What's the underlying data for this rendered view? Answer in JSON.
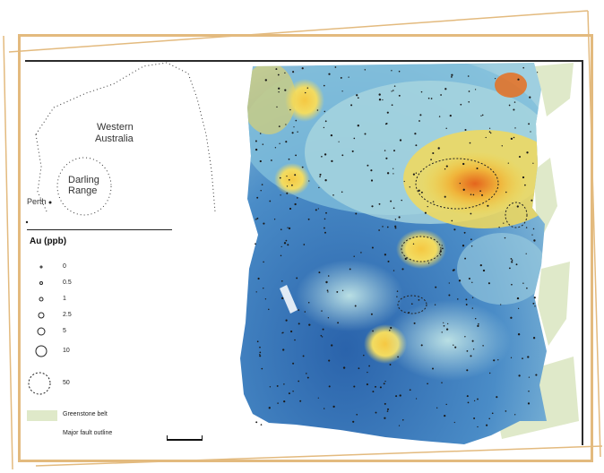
{
  "inset": {
    "region_label_1": "Western",
    "region_label_2": "Australia",
    "area_label_1": "Darling",
    "area_label_2": "Range",
    "city_label": "Perth"
  },
  "legend": {
    "title": "Au (ppb)",
    "items": [
      {
        "label": "0"
      },
      {
        "label": "0.5"
      },
      {
        "label": "1"
      },
      {
        "label": "2.5"
      },
      {
        "label": "5"
      },
      {
        "label": "10"
      },
      {
        "label": "50"
      }
    ],
    "swatch_label": "Greenstone belt",
    "outline_label": "Major fault outline"
  },
  "colors": {
    "frame": "#e3ba7e",
    "low": "#2f6cb0",
    "mid": "#8cc7dd",
    "neutral": "#d7eadd",
    "high": "#f1d64c",
    "peak": "#e86f1f",
    "greenstone": "#dfe9c9"
  },
  "ticks": {
    "top": [
      "",
      "",
      "",
      "",
      "",
      "",
      ""
    ],
    "right": [
      "",
      "",
      "",
      "",
      ""
    ],
    "bottom": [
      "",
      "",
      "",
      "",
      "",
      ""
    ]
  }
}
